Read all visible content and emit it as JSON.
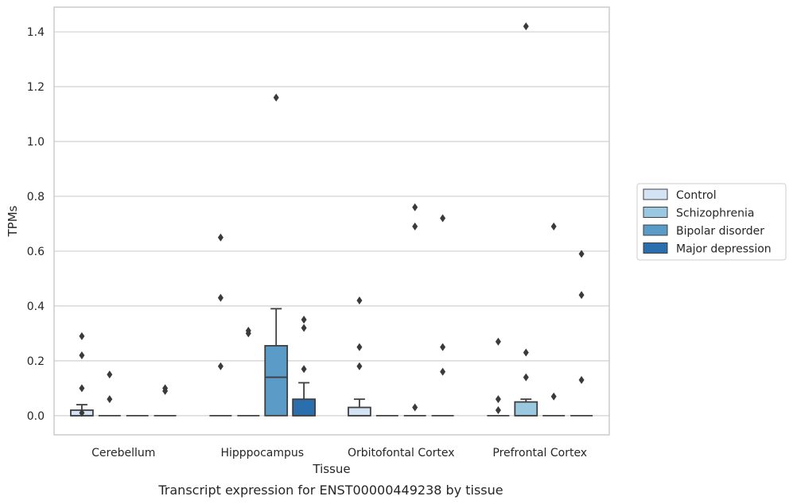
{
  "caption": "Transcript expression for ENST00000449238 by tissue",
  "chart_data": {
    "type": "box",
    "title": "",
    "xlabel": "Tissue",
    "ylabel": "TPMs",
    "ylim": [
      -0.07,
      1.49
    ],
    "yticks": [
      "0.0",
      "0.2",
      "0.4",
      "0.6",
      "0.8",
      "1.0",
      "1.2",
      "1.4"
    ],
    "ytick_values": [
      0,
      0.2,
      0.4,
      0.6,
      0.8,
      1.0,
      1.2,
      1.4
    ],
    "grid": true,
    "legend_position": "right",
    "categories": [
      "Cerebellum",
      "Hipppocampus",
      "Orbitofontal Cortex",
      "Prefrontal Cortex"
    ],
    "series": [
      {
        "name": "Control",
        "color": "#d3e3f3",
        "boxes": [
          {
            "q1": 0,
            "median": 0,
            "q3": 0.02,
            "whisker_low": 0,
            "whisker_high": 0.04,
            "outliers": [
              0.29,
              0.22,
              0.1,
              0.01
            ]
          },
          {
            "q1": 0,
            "median": 0,
            "q3": 0,
            "whisker_low": 0,
            "whisker_high": 0,
            "outliers": [
              0.65,
              0.43,
              0.18
            ]
          },
          {
            "q1": 0,
            "median": 0,
            "q3": 0.03,
            "whisker_low": 0,
            "whisker_high": 0.06,
            "outliers": [
              0.42,
              0.25,
              0.18
            ]
          },
          {
            "q1": 0,
            "median": 0,
            "q3": 0,
            "whisker_low": 0,
            "whisker_high": 0,
            "outliers": [
              0.27,
              0.06,
              0.02
            ]
          }
        ]
      },
      {
        "name": "Schizophrenia",
        "color": "#9ac8e0",
        "boxes": [
          {
            "q1": 0,
            "median": 0,
            "q3": 0,
            "whisker_low": 0,
            "whisker_high": 0,
            "outliers": [
              0.15,
              0.06
            ]
          },
          {
            "q1": 0,
            "median": 0,
            "q3": 0,
            "whisker_low": 0,
            "whisker_high": 0,
            "outliers": [
              0.31,
              0.3
            ]
          },
          {
            "q1": 0,
            "median": 0,
            "q3": 0,
            "whisker_low": 0,
            "whisker_high": 0,
            "outliers": []
          },
          {
            "q1": 0,
            "median": 0,
            "q3": 0.05,
            "whisker_low": 0,
            "whisker_high": 0.06,
            "outliers": [
              1.42,
              0.23,
              0.14
            ]
          }
        ]
      },
      {
        "name": "Bipolar disorder",
        "color": "#5a9bc7",
        "boxes": [
          {
            "q1": 0,
            "median": 0,
            "q3": 0,
            "whisker_low": 0,
            "whisker_high": 0,
            "outliers": []
          },
          {
            "q1": 0,
            "median": 0.14,
            "q3": 0.255,
            "whisker_low": 0,
            "whisker_high": 0.39,
            "outliers": [
              1.16
            ]
          },
          {
            "q1": 0,
            "median": 0,
            "q3": 0,
            "whisker_low": 0,
            "whisker_high": 0,
            "outliers": [
              0.76,
              0.69,
              0.03
            ]
          },
          {
            "q1": 0,
            "median": 0,
            "q3": 0,
            "whisker_low": 0,
            "whisker_high": 0,
            "outliers": [
              0.69,
              0.07
            ]
          }
        ]
      },
      {
        "name": "Major depression",
        "color": "#2a6ead",
        "boxes": [
          {
            "q1": 0,
            "median": 0,
            "q3": 0,
            "whisker_low": 0,
            "whisker_high": 0,
            "outliers": [
              0.1,
              0.09
            ]
          },
          {
            "q1": 0,
            "median": 0,
            "q3": 0.06,
            "whisker_low": 0,
            "whisker_high": 0.12,
            "outliers": [
              0.35,
              0.32,
              0.17
            ]
          },
          {
            "q1": 0,
            "median": 0,
            "q3": 0,
            "whisker_low": 0,
            "whisker_high": 0,
            "outliers": [
              0.72,
              0.25,
              0.16
            ]
          },
          {
            "q1": 0,
            "median": 0,
            "q3": 0,
            "whisker_low": 0,
            "whisker_high": 0,
            "outliers": [
              0.59,
              0.44,
              0.13
            ]
          }
        ]
      }
    ]
  }
}
